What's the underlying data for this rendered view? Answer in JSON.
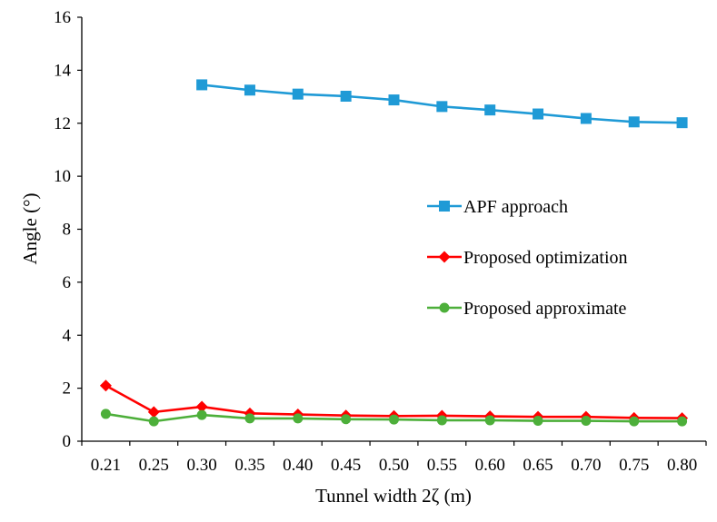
{
  "chart_data": {
    "type": "line",
    "title": "",
    "xlabel": "Tunnel width 2ζ (m)",
    "ylabel": "Angle (°)",
    "categories": [
      "0.21",
      "0.25",
      "0.30",
      "0.35",
      "0.40",
      "0.45",
      "0.50",
      "0.55",
      "0.60",
      "0.65",
      "0.70",
      "0.75",
      "0.80"
    ],
    "ylim": [
      0,
      16
    ],
    "yticks": [
      "0",
      "2",
      "4",
      "6",
      "8",
      "10",
      "12",
      "14",
      "16"
    ],
    "grid": false,
    "legend_position": "center-right",
    "series": [
      {
        "name": "APF approach",
        "color": "#1f9ad6",
        "marker": "square",
        "values": [
          null,
          null,
          13.45,
          13.25,
          13.1,
          13.02,
          12.88,
          12.63,
          12.5,
          12.35,
          12.18,
          12.05,
          12.02
        ]
      },
      {
        "name": "Proposed optimization",
        "color": "#ff0000",
        "marker": "diamond",
        "values": [
          2.1,
          1.1,
          1.3,
          1.05,
          1.01,
          0.97,
          0.95,
          0.96,
          0.94,
          0.92,
          0.92,
          0.88,
          0.87
        ]
      },
      {
        "name": "Proposed approximate",
        "color": "#4daf3a",
        "marker": "circle",
        "values": [
          1.03,
          0.75,
          0.99,
          0.86,
          0.86,
          0.83,
          0.82,
          0.79,
          0.79,
          0.77,
          0.77,
          0.75,
          0.75
        ]
      }
    ]
  }
}
